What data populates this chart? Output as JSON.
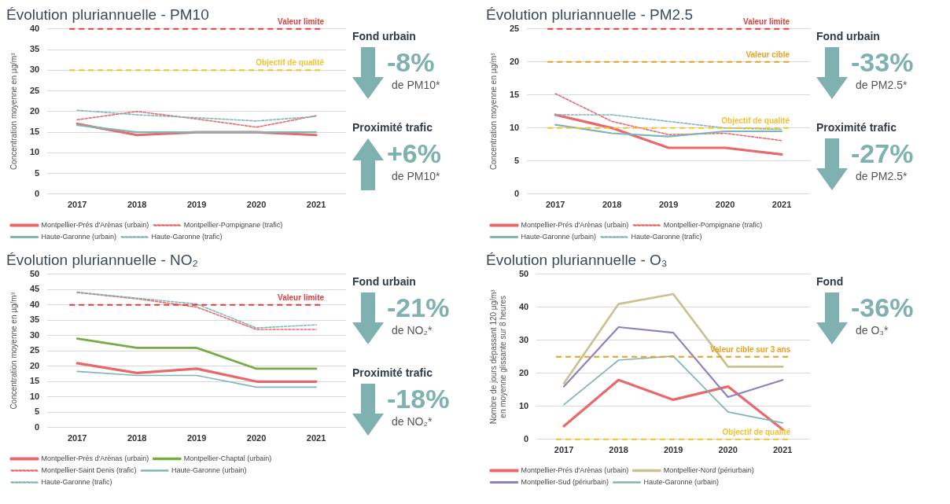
{
  "chart_data": [
    {
      "type": "line",
      "title": "Évolution pluriannuelle - PM10",
      "ylabel": "Concentration moyenne en µg/m³",
      "categories": [
        "2017",
        "2018",
        "2019",
        "2020",
        "2021"
      ],
      "ylim": [
        0,
        40
      ],
      "yticks": [
        0,
        5,
        10,
        15,
        20,
        25,
        30,
        35,
        40
      ],
      "grid": "y",
      "legend": "bottom",
      "series": [
        {
          "name": "Montpellier-Prés d'Arènas (urbain)",
          "color": "#e8696b",
          "line_style": "solid",
          "values": [
            17,
            14.3,
            15,
            15,
            14.3
          ]
        },
        {
          "name": "Montpellier-Pompignane (trafic)",
          "color": "#e8696b",
          "line_style": "dotted",
          "values": [
            18,
            20,
            18.2,
            16.2,
            19
          ]
        },
        {
          "name": "Haute-Garonne (urbain)",
          "color": "#7fb5b5",
          "line_style": "solid",
          "values": [
            16.7,
            15,
            15,
            15,
            15
          ]
        },
        {
          "name": "Haute-Garonne (trafic)",
          "color": "#7fb5b5",
          "line_style": "dotted",
          "values": [
            20.3,
            19.2,
            18.5,
            17.7,
            18.8
          ]
        }
      ],
      "ref_lines": [
        {
          "axis": "y",
          "value": 40,
          "label": "Valeur limite",
          "color": "#e03c3c",
          "line_style": "dashed"
        },
        {
          "axis": "y",
          "value": 30,
          "label": "Objectif de qualité",
          "color": "#f2c12e",
          "line_style": "dashed"
        }
      ]
    },
    {
      "type": "other",
      "annotations": [
        "Fond urbain",
        "-8%",
        "de PM10*",
        "Proximité trafic",
        "+6%",
        "de PM10*"
      ]
    },
    {
      "type": "line",
      "title": "Évolution pluriannuelle - PM2.5",
      "ylabel": "Concentration moyenne en µg/m³",
      "categories": [
        "2017",
        "2018",
        "2019",
        "2020",
        "2021"
      ],
      "ylim": [
        0,
        25
      ],
      "yticks": [
        0,
        5,
        10,
        15,
        20,
        25
      ],
      "grid": "y",
      "legend": "bottom",
      "series": [
        {
          "name": "Montpellier-Prés d'Arènas (urbain)",
          "color": "#e8696b",
          "line_style": "solid",
          "values": [
            12,
            10,
            7,
            7,
            6
          ]
        },
        {
          "name": "Montpellier-Pompignane (trafic)",
          "color": "#e8696b",
          "line_style": "dotted",
          "values": [
            15.2,
            11,
            9,
            9.2,
            8.1
          ]
        },
        {
          "name": "Haute-Garonne (urbain)",
          "color": "#7fb5b5",
          "line_style": "solid",
          "values": [
            10.5,
            9.2,
            8.7,
            9.5,
            9.5
          ]
        },
        {
          "name": "Haute-Garonne (trafic)",
          "color": "#7fb5b5",
          "line_style": "dotted",
          "values": [
            12,
            12,
            11,
            10,
            9.8
          ]
        }
      ],
      "ref_lines": [
        {
          "axis": "y",
          "value": 25,
          "label": "Valeur limite",
          "color": "#e03c3c",
          "line_style": "dashed"
        },
        {
          "axis": "y",
          "value": 20,
          "label": "Valeur cible",
          "color": "#e8a020",
          "line_style": "dashed"
        },
        {
          "axis": "y",
          "value": 10,
          "label": "Objectif de qualité",
          "color": "#f2c12e",
          "line_style": "dashed"
        }
      ]
    },
    {
      "type": "other",
      "annotations": [
        "Fond urbain",
        "-33%",
        "de PM2.5*",
        "Proximité trafic",
        "-27%",
        "de PM2.5*"
      ]
    },
    {
      "type": "line",
      "title": "Évolution pluriannuelle - NO₂",
      "ylabel": "Concentration moyenne en µg/m³",
      "categories": [
        "2017",
        "2018",
        "2019",
        "2020",
        "2021"
      ],
      "ylim": [
        0,
        50
      ],
      "yticks": [
        0,
        5,
        10,
        15,
        20,
        25,
        30,
        35,
        40,
        45,
        50
      ],
      "grid": "y",
      "legend": "bottom",
      "series": [
        {
          "name": "Montpellier-Prés d'Arènas (urbain)",
          "color": "#e8696b",
          "line_style": "solid",
          "values": [
            21,
            17.8,
            19.2,
            15,
            15
          ]
        },
        {
          "name": "Montpellier-Chaptal (urbain)",
          "color": "#77ab43",
          "line_style": "solid",
          "values": [
            29,
            26,
            26,
            19.2,
            19.2
          ]
        },
        {
          "name": "Montpellier-Saint Denis (trafic)",
          "color": "#e8696b",
          "line_style": "dotted",
          "values": [
            44,
            42,
            39.3,
            32,
            32
          ]
        },
        {
          "name": "Haute-Garonne (urbain)",
          "color": "#7fb5b5",
          "line_style": "solid",
          "values": [
            18.3,
            17,
            17,
            13.2,
            13.2
          ]
        },
        {
          "name": "Haute-Garonne (trafic)",
          "color": "#7fb5b5",
          "line_style": "dotted",
          "values": [
            44.2,
            42.2,
            40.3,
            32.5,
            33.5
          ]
        }
      ],
      "ref_lines": [
        {
          "axis": "y",
          "value": 40,
          "label": "Valeur limite",
          "color": "#e03c3c",
          "line_style": "dashed"
        }
      ]
    },
    {
      "type": "other",
      "annotations": [
        "Fond urbain",
        "-21%",
        "de NO₂*",
        "Proximité trafic",
        "-18%",
        "de NO₂*"
      ]
    },
    {
      "type": "line",
      "title": "Évolution pluriannuelle - O₃",
      "ylabel": "Nombre de jours dépassant 120 µg/m³ en moyenne glissante sur 8 heures",
      "categories": [
        "2017",
        "2018",
        "2019",
        "2020",
        "2021"
      ],
      "ylim": [
        0,
        50
      ],
      "yticks": [
        0,
        10,
        20,
        30,
        40,
        50
      ],
      "grid": "y",
      "legend": "bottom",
      "series": [
        {
          "name": "Montpellier-Prés d'Arènas (urbain)",
          "color": "#e8696b",
          "line_style": "solid",
          "values": [
            4,
            18,
            12,
            16,
            3
          ]
        },
        {
          "name": "Montpellier-Nord (périurbain)",
          "color": "#c9c290",
          "line_style": "solid",
          "values": [
            17,
            41,
            44,
            22,
            22
          ]
        },
        {
          "name": "Montpellier-Sud (périurbain)",
          "color": "#8f7fc1",
          "line_style": "solid",
          "values": [
            16,
            34,
            32.3,
            12.8,
            18
          ]
        },
        {
          "name": "Haute-Garonne (urbain)",
          "color": "#7fb5b5",
          "line_style": "solid",
          "values": [
            10.5,
            24,
            25.2,
            8.3,
            5
          ]
        }
      ],
      "ref_lines": [
        {
          "axis": "y",
          "value": 25,
          "label": "Valeur cible sur 3 ans",
          "color": "#e8a020",
          "line_style": "dashed"
        },
        {
          "axis": "y",
          "value": 0,
          "label": "Objectif de qualité",
          "color": "#f2c12e",
          "line_style": "dashed"
        }
      ]
    },
    {
      "type": "other",
      "annotations": [
        "Fond",
        "-36%",
        "de O₃*"
      ]
    }
  ]
}
